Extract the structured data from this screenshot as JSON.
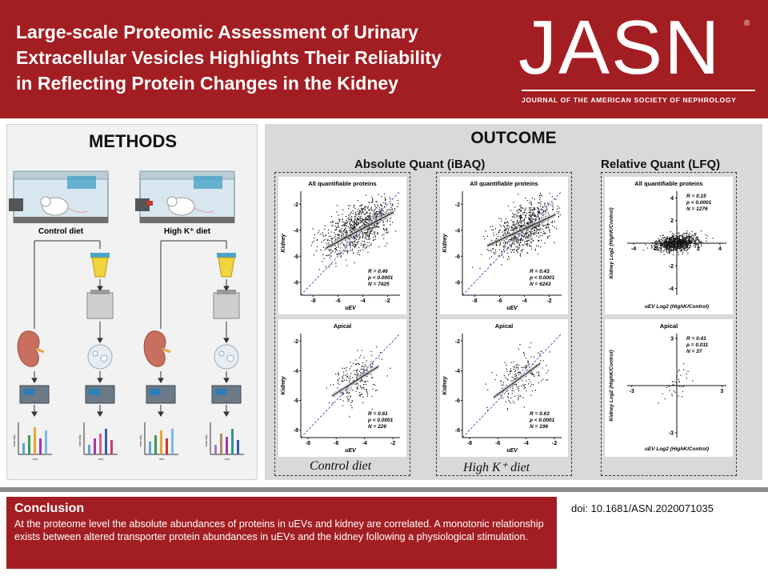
{
  "header": {
    "title_lines": [
      "Large-scale Proteomic Assessment of Urinary",
      "Extracellular Vesicles Highlights Their Reliability",
      "in Reflecting Protein Changes in the Kidney"
    ],
    "logo": "JASN",
    "logo_reg": "®",
    "subtitle": "JOURNAL OF THE AMERICAN SOCIETY OF NEPHROLOGY"
  },
  "methods": {
    "title": "METHODS",
    "diet_labels": [
      "Control diet",
      "High K⁺ diet"
    ],
    "spectrum_ylabel": "Intensity",
    "spectrum_xlabel": "m/z"
  },
  "outcome": {
    "title": "OUTCOME",
    "absolute_title": "Absolute Quant (iBAQ)",
    "relative_title": "Relative Quant (LFQ)",
    "captions": [
      "Control diet",
      "High K⁺ diet"
    ]
  },
  "colors": {
    "header_red": "#a31e22",
    "outcome_gray": "#d9d9d9",
    "identity_line": "#5b63c9"
  },
  "chart_data": [
    {
      "type": "scatter",
      "title": "All quantifiable proteins",
      "xlabel": "uEV",
      "ylabel": "Kidney",
      "xticks": [
        "-8",
        "-6",
        "-4",
        "-2"
      ],
      "yticks": [
        "-2",
        "-4",
        "-6",
        "-8"
      ],
      "xlim": [
        -9,
        -1
      ],
      "ylim": [
        -9,
        -1
      ],
      "stats": [
        "R = 0.46",
        "p < 0.0001",
        "N = 7425"
      ],
      "fit": {
        "x": [
          -7.0,
          -1.5
        ],
        "y": [
          -5.4,
          -2.6
        ]
      },
      "cloud": {
        "cx": -4.3,
        "cy": -3.8,
        "sx": 1.5,
        "sy": 0.9,
        "n": 900
      }
    },
    {
      "type": "scatter",
      "title": "All quantifiable proteins",
      "xlabel": "uEV",
      "ylabel": "Kidney",
      "xticks": [
        "-8",
        "-6",
        "-4",
        "-2"
      ],
      "yticks": [
        "-2",
        "-4",
        "-6",
        "-8"
      ],
      "xlim": [
        -9,
        -1
      ],
      "ylim": [
        -9,
        -1
      ],
      "stats": [
        "R = 0.43",
        "p < 0.0001",
        "N = 6243"
      ],
      "fit": {
        "x": [
          -7.0,
          -1.5
        ],
        "y": [
          -5.2,
          -2.8
        ]
      },
      "cloud": {
        "cx": -4.0,
        "cy": -3.8,
        "sx": 1.3,
        "sy": 0.9,
        "n": 800
      }
    },
    {
      "type": "scatter",
      "title": "Apical",
      "xlabel": "uEV",
      "ylabel": "Kidney",
      "xticks": [
        "-8",
        "-6",
        "-4",
        "-2"
      ],
      "yticks": [
        "-2",
        "-4",
        "-6",
        "-8"
      ],
      "xlim": [
        -8.5,
        -1.5
      ],
      "ylim": [
        -8.5,
        -1.5
      ],
      "stats": [
        "R = 0.61",
        "p < 0.0001",
        "N = 226"
      ],
      "fit": {
        "x": [
          -6.3,
          -3.0
        ],
        "y": [
          -5.7,
          -3.7
        ]
      },
      "cloud": {
        "cx": -4.6,
        "cy": -4.6,
        "sx": 0.9,
        "sy": 0.8,
        "n": 226
      }
    },
    {
      "type": "scatter",
      "title": "Apical",
      "xlabel": "uEV",
      "ylabel": "Kidney",
      "xticks": [
        "-8",
        "-6",
        "-4",
        "-2"
      ],
      "yticks": [
        "-2",
        "-4",
        "-6",
        "-8"
      ],
      "xlim": [
        -8.5,
        -1.5
      ],
      "ylim": [
        -8.5,
        -1.5
      ],
      "stats": [
        "R = 0.63",
        "p < 0.0001",
        "N = 196"
      ],
      "fit": {
        "x": [
          -6.3,
          -3.0
        ],
        "y": [
          -5.8,
          -3.5
        ]
      },
      "cloud": {
        "cx": -4.5,
        "cy": -4.5,
        "sx": 0.9,
        "sy": 0.8,
        "n": 196
      }
    },
    {
      "type": "scatter",
      "title": "All quantifiable proteins",
      "xlabel": "uEV Log2 (HighK/Control)",
      "ylabel": "Kidney Log2 (HighK/Control)",
      "xticks": [
        "-4",
        "-2",
        "2",
        "4"
      ],
      "yticks": [
        "4",
        "2",
        "-2",
        "-4"
      ],
      "xlim": [
        -4.6,
        4.6
      ],
      "ylim": [
        -4.6,
        4.6
      ],
      "stats": [
        "R = 0.15",
        "p < 0.0001",
        "N = 1276"
      ],
      "cloud": {
        "cx": 0.0,
        "cy": 0.0,
        "sx": 1.0,
        "sy": 0.35,
        "n": 900
      }
    },
    {
      "type": "scatter",
      "title": "Apical",
      "xlabel": "uEV Log2 (HighK/Control)",
      "ylabel": "Kidney Log2 (HighK/Control)",
      "xticks": [
        "-3",
        "3"
      ],
      "yticks": [
        "3",
        "-3"
      ],
      "xlim": [
        -3.3,
        3.3
      ],
      "ylim": [
        -3.3,
        3.3
      ],
      "stats": [
        "R = 0.41",
        "p = 0.011",
        "N = 37"
      ],
      "cloud": {
        "cx": 0.05,
        "cy": 0.1,
        "sx": 0.45,
        "sy": 0.45,
        "n": 37
      }
    }
  ],
  "conclusion": {
    "heading": "Conclusion",
    "text": "At the proteome level the absolute abundances of proteins in uEVs and kidney are correlated. A monotonic relationship exists between altered transporter protein abundances in uEVs and the kidney following a physiological stimulation."
  },
  "doi": "doi: 10.1681/ASN.2020071035"
}
